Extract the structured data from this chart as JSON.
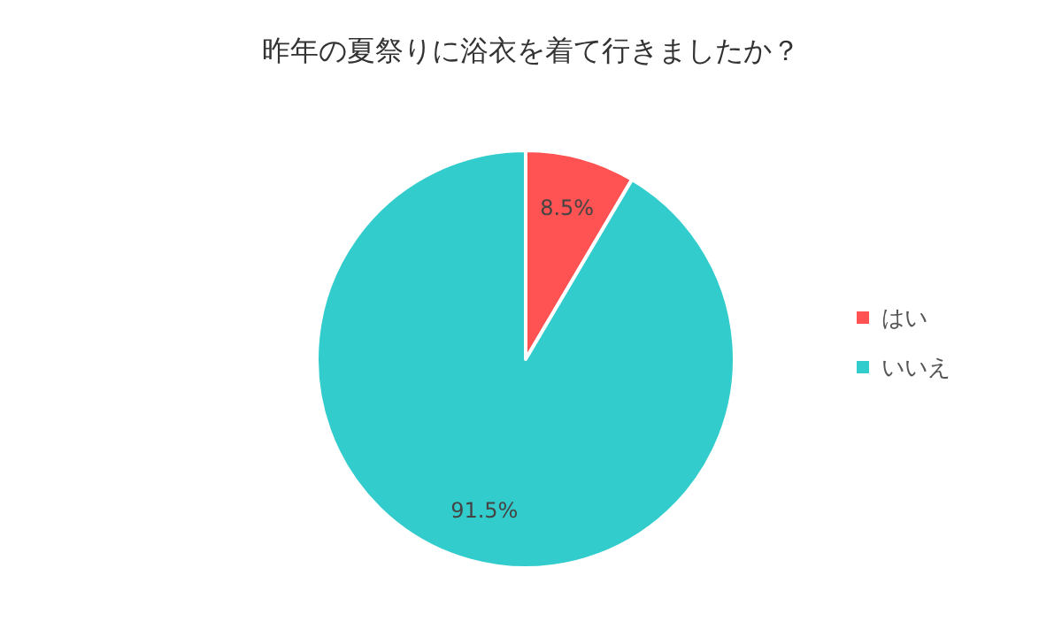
{
  "chart_data": {
    "type": "pie",
    "title": "昨年の夏祭りに浴衣を着て行きましたか？",
    "categories": [
      "はい",
      "いいえ"
    ],
    "values": [
      8.5,
      91.5
    ],
    "value_labels": [
      "8.5%",
      "91.5%"
    ],
    "colors": [
      "#ff5252",
      "#33cccc"
    ],
    "legend": "right"
  }
}
